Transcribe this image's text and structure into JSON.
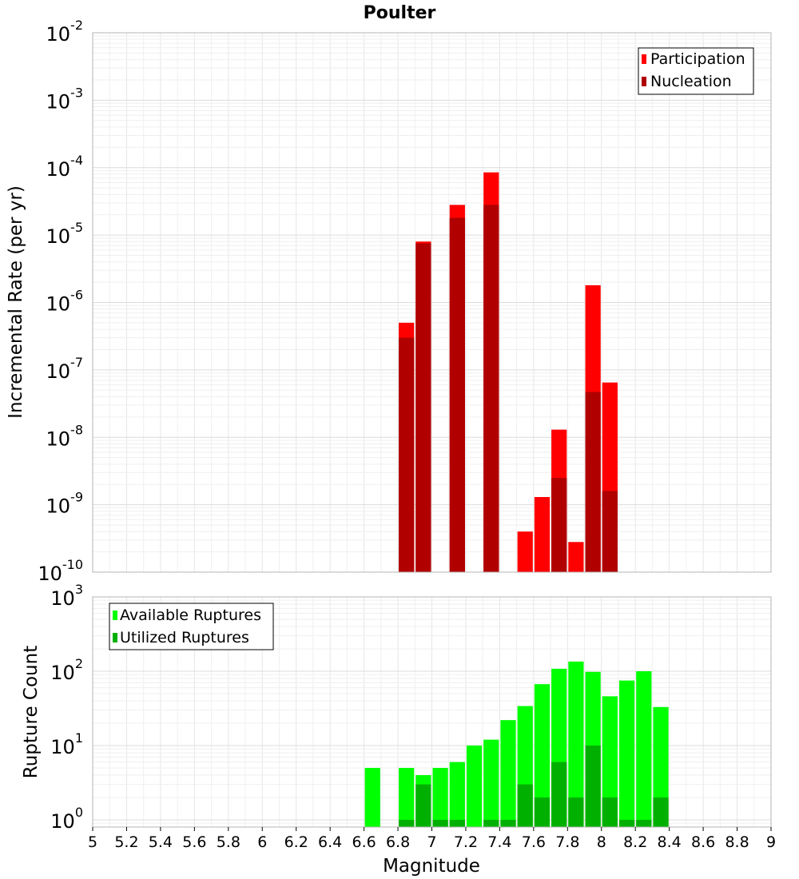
{
  "chart_data": [
    {
      "type": "bar",
      "title": "Poulter",
      "xlabel": "",
      "ylabel": "Incremental Rate (per yr)",
      "xlim": [
        5,
        9
      ],
      "ylim": [
        1e-10,
        0.01
      ],
      "yscale": "log",
      "grid": true,
      "legend_position": "top-right",
      "bin_width": 0.1,
      "y_ticks": [
        {
          "base": "10",
          "exp": "-10",
          "value": 1e-10
        },
        {
          "base": "10",
          "exp": "-9",
          "value": 1e-09
        },
        {
          "base": "10",
          "exp": "-8",
          "value": 1e-08
        },
        {
          "base": "10",
          "exp": "-7",
          "value": 1e-07
        },
        {
          "base": "10",
          "exp": "-6",
          "value": 1e-06
        },
        {
          "base": "10",
          "exp": "-5",
          "value": 1e-05
        },
        {
          "base": "10",
          "exp": "-4",
          "value": 0.0001
        },
        {
          "base": "10",
          "exp": "-3",
          "value": 0.001
        },
        {
          "base": "10",
          "exp": "-2",
          "value": 0.01
        }
      ],
      "series": [
        {
          "name": "Participation",
          "color": "#ff0000",
          "x": [
            6.85,
            6.95,
            7.15,
            7.35,
            7.55,
            7.65,
            7.75,
            7.85,
            7.95,
            8.05
          ],
          "values": [
            5e-07,
            8e-06,
            2.8e-05,
            8.5e-05,
            4e-10,
            1.3e-09,
            1.3e-08,
            2.8e-10,
            1.8e-06,
            6.5e-08
          ]
        },
        {
          "name": "Nucleation",
          "color": "#b00000",
          "x": [
            6.85,
            6.95,
            7.15,
            7.35,
            7.75,
            7.95,
            8.05
          ],
          "values": [
            3e-07,
            7.5e-06,
            1.8e-05,
            2.8e-05,
            2.5e-09,
            4.7e-08,
            1.6e-09
          ]
        }
      ]
    },
    {
      "type": "bar",
      "title": "",
      "xlabel": "Magnitude",
      "ylabel": "Rupture Count",
      "xlim": [
        5,
        9
      ],
      "ylim": [
        0.8,
        1000
      ],
      "yscale": "log",
      "grid": true,
      "legend_position": "top-left",
      "bin_width": 0.1,
      "x_ticks": [
        "5",
        "5.2",
        "5.4",
        "5.6",
        "5.8",
        "6",
        "6.2",
        "6.4",
        "6.6",
        "6.8",
        "7",
        "7.2",
        "7.4",
        "7.6",
        "7.8",
        "8",
        "8.2",
        "8.4",
        "8.6",
        "8.8",
        "9"
      ],
      "y_ticks": [
        {
          "base": "10",
          "exp": "0",
          "value": 1
        },
        {
          "base": "10",
          "exp": "1",
          "value": 10
        },
        {
          "base": "10",
          "exp": "2",
          "value": 100
        },
        {
          "base": "10",
          "exp": "3",
          "value": 1000
        }
      ],
      "series": [
        {
          "name": "Available Ruptures",
          "color": "#00ff00",
          "x": [
            6.65,
            6.85,
            6.95,
            7.05,
            7.15,
            7.25,
            7.35,
            7.45,
            7.55,
            7.65,
            7.75,
            7.85,
            7.95,
            8.05,
            8.15,
            8.25,
            8.35
          ],
          "values": [
            5,
            5,
            4,
            5,
            6,
            10,
            12,
            22,
            34,
            67,
            108,
            135,
            98,
            46,
            75,
            100,
            33
          ]
        },
        {
          "name": "Utilized Ruptures",
          "color": "#00b000",
          "x": [
            6.85,
            6.95,
            7.05,
            7.15,
            7.35,
            7.45,
            7.55,
            7.65,
            7.75,
            7.85,
            7.95,
            8.05,
            8.15,
            8.25,
            8.35
          ],
          "values": [
            1,
            3,
            1,
            1,
            1,
            1,
            3,
            2,
            6,
            2,
            10,
            2,
            1,
            1,
            2
          ]
        }
      ]
    }
  ]
}
